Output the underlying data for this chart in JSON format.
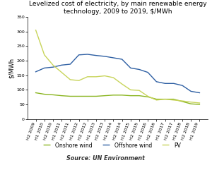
{
  "title": "Levelized cost of electricity, by main renewable energy\ntechnology, 2009 to 2019, $/MWh",
  "ylabel": "$/MWh",
  "source": "Source: UN Environment",
  "x_labels": [
    "H2 2009",
    "H1 2010",
    "H2 2010",
    "H1 2011",
    "H2 2011",
    "H1 2012",
    "H2 2012",
    "H1 2013",
    "H2 2013",
    "H1 2014",
    "H2 2014",
    "H1 2015",
    "H2 2015",
    "H1 2016",
    "H2 2016",
    "H1 2017",
    "H2 2017",
    "H1 2018",
    "H2 2018",
    "H1 2019"
  ],
  "onshore_wind": [
    90,
    85,
    83,
    80,
    78,
    78,
    78,
    78,
    80,
    82,
    82,
    80,
    80,
    76,
    68,
    68,
    68,
    60,
    52,
    50
  ],
  "offshore_wind": [
    162,
    175,
    178,
    185,
    188,
    220,
    222,
    218,
    215,
    210,
    205,
    175,
    170,
    160,
    128,
    122,
    122,
    115,
    95,
    90
  ],
  "pv": [
    305,
    220,
    185,
    160,
    135,
    132,
    145,
    145,
    148,
    142,
    120,
    100,
    98,
    78,
    65,
    68,
    65,
    62,
    58,
    55
  ],
  "onshore_color": "#8ab520",
  "offshore_color": "#2e5fa3",
  "pv_color": "#c8d45a",
  "ylim": [
    0,
    350
  ],
  "yticks": [
    0,
    50,
    100,
    150,
    200,
    250,
    300,
    350
  ],
  "title_fontsize": 6.5,
  "ylabel_fontsize": 6,
  "tick_fontsize": 4.5,
  "legend_fontsize": 5.5,
  "source_fontsize": 5.8
}
